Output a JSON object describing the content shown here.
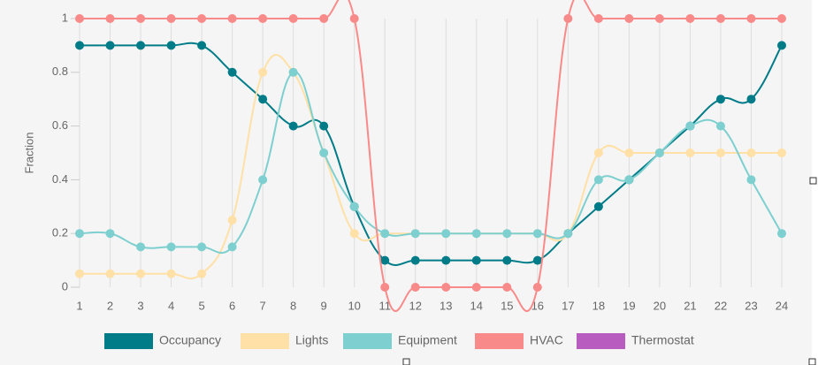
{
  "chart_data": {
    "type": "line",
    "y_label": "Fraction",
    "categories": [
      "1",
      "2",
      "3",
      "4",
      "5",
      "6",
      "7",
      "8",
      "9",
      "10",
      "11",
      "12",
      "13",
      "14",
      "15",
      "16",
      "17",
      "18",
      "19",
      "20",
      "21",
      "22",
      "23",
      "24"
    ],
    "series": [
      {
        "name": "Occupancy",
        "color": "#007c89",
        "values": [
          0.9,
          0.9,
          0.9,
          0.9,
          0.9,
          0.8,
          0.7,
          0.6,
          0.6,
          0.3,
          0.1,
          0.1,
          0.1,
          0.1,
          0.1,
          0.1,
          0.2,
          0.3,
          0.4,
          0.5,
          0.6,
          0.7,
          0.7,
          0.9
        ]
      },
      {
        "name": "Lights",
        "color": "#ffe0a6",
        "values": [
          0.05,
          0.05,
          0.05,
          0.05,
          0.05,
          0.25,
          0.8,
          0.8,
          0.5,
          0.2,
          0.2,
          0.2,
          0.2,
          0.2,
          0.2,
          0.2,
          0.2,
          0.5,
          0.5,
          0.5,
          0.5,
          0.5,
          0.5,
          0.5
        ]
      },
      {
        "name": "Equipment",
        "color": "#7ecfcf",
        "values": [
          0.2,
          0.2,
          0.15,
          0.15,
          0.15,
          0.15,
          0.4,
          0.8,
          0.5,
          0.3,
          0.2,
          0.2,
          0.2,
          0.2,
          0.2,
          0.2,
          0.2,
          0.4,
          0.4,
          0.5,
          0.6,
          0.6,
          0.4,
          0.2
        ]
      },
      {
        "name": "HVAC",
        "color": "#f98a8a",
        "values": [
          1,
          1,
          1,
          1,
          1,
          1,
          1,
          1,
          1,
          1,
          0,
          0,
          0,
          0,
          0,
          0,
          1,
          1,
          1,
          1,
          1,
          1,
          1,
          1
        ]
      },
      {
        "name": "Thermostat",
        "color": "#b85cc0",
        "values": [
          null,
          null,
          null,
          null,
          null,
          null,
          null,
          null,
          null,
          null,
          null,
          null,
          null,
          null,
          null,
          null,
          null,
          null,
          null,
          null,
          null,
          null,
          null,
          null
        ]
      }
    ],
    "ylim": [
      0,
      1
    ],
    "yticks": [
      0,
      0.2,
      0.4,
      0.6,
      0.8,
      1
    ],
    "grid": true
  }
}
